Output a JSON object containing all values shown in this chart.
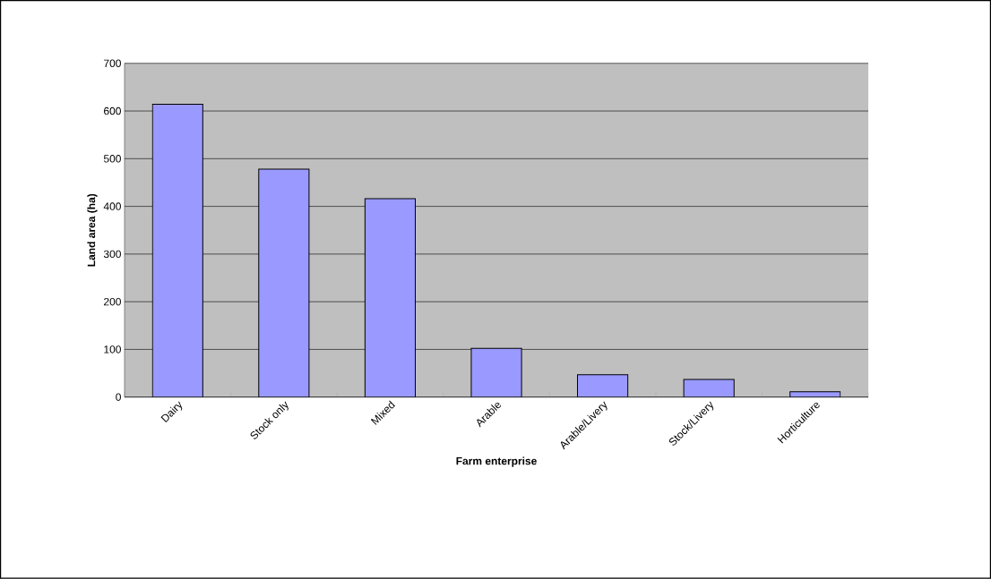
{
  "chart_data": {
    "type": "bar",
    "xlabel": "Farm enterprise",
    "ylabel": "Land area (ha)",
    "categories": [
      "Dairy",
      "Stock only",
      "Mixed",
      "Arable",
      "Arable/Livery",
      "Stock/Livery",
      "Horticulture"
    ],
    "values": [
      614,
      478,
      416,
      102,
      47,
      37,
      11
    ],
    "color": "#9999ff",
    "ylim": [
      0,
      700
    ],
    "yticks": [
      0,
      100,
      200,
      300,
      400,
      500,
      600,
      700
    ],
    "grid": "y"
  }
}
